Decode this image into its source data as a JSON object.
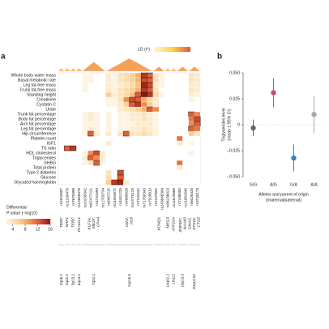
{
  "chart_data": [
    {
      "type": "heatmap",
      "panel": "a",
      "rows": [
        "Whole body water mass",
        "Basal metabolic rate",
        "Leg fat-free mass",
        "Trunk fat-free mass",
        "Standing height",
        "Creatinine",
        "Cystatin C",
        "Urate",
        "Trunk fat percentage",
        "Body fat percentage",
        "Arm fat percentage",
        "Leg fat percentage",
        "Hip circumference",
        "Platelet count",
        "IGF1",
        "TS ratio",
        "HDL cholesterol",
        "Triglycerides",
        "SHBG",
        "Total protein",
        "Type 2 diabetes",
        "Glucose",
        "Glycated haemoglobin"
      ],
      "groups": [
        {
          "genes": [
            "TERC"
          ],
          "band": "3q26.2",
          "snps": [
            "rs2920907"
          ]
        },
        {
          "genes": [
            "NAF1"
          ],
          "band": "4q32.2",
          "snps": [
            "rs11100479"
          ]
        },
        {
          "genes": [
            "TERC"
          ],
          "band": "5p13.2",
          "snps": [
            "rs7675998"
          ]
        },
        {
          "genes": [
            "PLAGL1"
          ],
          "band": "6q24.2",
          "snps": [
            "rs12659376"
          ]
        },
        {
          "genes": [
            "KLF14,",
            "MEST,",
            "CPA4"
          ],
          "band": "7q32.2",
          "snps": [
            "rs10239342",
            "rs62477221",
            "rs4731690",
            "rs12703734"
          ]
        },
        {
          "genes": [
            "IGF2,",
            "H19"
          ],
          "band": "11p15.5",
          "snps": [
            "rs6467215",
            "rs11054972",
            "rs4441225",
            "rs4980628",
            "rs10770125",
            "rs7102542",
            "rs71780343",
            "rs7928810"
          ]
        },
        {
          "genes": [
            "KCNQ1"
          ],
          "snps": [
            "rs2237892",
            "rs143848304"
          ]
        },
        {
          "genes": [
            "MEG3"
          ],
          "band": "14q32.2",
          "snps": [
            "rs56238023"
          ]
        },
        {
          "genes": [
            "ATP10A"
          ],
          "band": "15q12",
          "snps": [
            "rs11629866"
          ]
        },
        {
          "genes": [
            "ZNF597,",
            "NAA60"
          ],
          "band": "16p13.3",
          "snps": [
            "rs7188050",
            "rs11081640"
          ]
        },
        {
          "genes": [
            "GNAS,",
            "STX16,",
            "CTSZ"
          ],
          "band": "20q13.32",
          "snps": [
            "rs6026426",
            "rs3730173"
          ]
        }
      ],
      "values": [
        [
          null,
          null,
          null,
          null,
          2,
          2,
          null,
          null,
          3,
          2,
          4,
          5,
          6,
          8,
          14,
          12,
          4,
          2,
          null,
          null,
          null,
          null,
          4,
          3
        ],
        [
          null,
          null,
          null,
          null,
          2,
          2,
          null,
          null,
          3,
          2,
          4,
          5,
          6,
          8,
          13,
          12,
          4,
          2,
          null,
          null,
          null,
          null,
          4,
          3
        ],
        [
          null,
          null,
          null,
          null,
          2,
          null,
          null,
          null,
          3,
          2,
          3,
          4,
          5,
          7,
          15,
          13,
          3,
          2,
          null,
          null,
          null,
          null,
          3,
          3
        ],
        [
          null,
          null,
          null,
          null,
          2,
          null,
          null,
          null,
          3,
          2,
          4,
          5,
          6,
          8,
          14,
          12,
          4,
          null,
          null,
          null,
          null,
          null,
          4,
          3
        ],
        [
          null,
          null,
          null,
          null,
          null,
          null,
          null,
          null,
          6,
          3,
          4,
          5,
          7,
          12,
          16,
          14,
          5,
          2,
          null,
          null,
          null,
          null,
          3,
          2
        ],
        [
          null,
          null,
          null,
          null,
          null,
          null,
          null,
          null,
          2,
          2,
          4,
          10,
          13,
          12,
          8,
          5,
          3,
          null,
          null,
          null,
          null,
          null,
          2,
          null
        ],
        [
          null,
          null,
          null,
          null,
          null,
          null,
          null,
          null,
          2,
          2,
          3,
          6,
          12,
          14,
          10,
          6,
          3,
          null,
          null,
          null,
          null,
          null,
          null,
          null
        ],
        [
          null,
          null,
          null,
          null,
          null,
          null,
          null,
          null,
          null,
          null,
          3,
          4,
          5,
          6,
          8,
          12,
          10,
          null,
          null,
          null,
          null,
          null,
          null,
          null
        ],
        [
          null,
          null,
          null,
          null,
          2,
          3,
          2,
          null,
          2,
          null,
          2,
          2,
          3,
          3,
          4,
          3,
          2,
          null,
          null,
          null,
          null,
          null,
          12,
          10
        ],
        [
          null,
          null,
          null,
          null,
          2,
          3,
          2,
          null,
          2,
          null,
          2,
          2,
          3,
          3,
          4,
          3,
          2,
          null,
          null,
          null,
          null,
          null,
          11,
          13
        ],
        [
          null,
          null,
          null,
          null,
          2,
          2,
          2,
          null,
          2,
          null,
          2,
          2,
          2,
          3,
          3,
          3,
          2,
          null,
          null,
          null,
          null,
          null,
          10,
          12
        ],
        [
          null,
          null,
          null,
          null,
          2,
          3,
          2,
          null,
          2,
          null,
          2,
          2,
          3,
          3,
          4,
          3,
          2,
          null,
          null,
          null,
          null,
          null,
          12,
          11
        ],
        [
          null,
          null,
          null,
          null,
          2,
          12,
          3,
          null,
          3,
          null,
          4,
          12,
          4,
          4,
          5,
          4,
          2,
          null,
          null,
          null,
          null,
          null,
          6,
          4
        ],
        [
          null,
          null,
          null,
          null,
          null,
          null,
          null,
          null,
          null,
          null,
          null,
          null,
          null,
          null,
          null,
          null,
          null,
          null,
          null,
          null,
          11,
          null,
          null,
          null
        ],
        [
          null,
          null,
          null,
          null,
          null,
          null,
          null,
          null,
          3,
          null,
          null,
          null,
          null,
          null,
          null,
          null,
          null,
          null,
          null,
          null,
          3,
          null,
          2,
          null
        ],
        [
          null,
          12,
          14,
          null,
          null,
          null,
          null,
          null,
          null,
          null,
          null,
          null,
          null,
          null,
          null,
          null,
          null,
          null,
          null,
          null,
          null,
          null,
          null,
          null
        ],
        [
          null,
          null,
          null,
          null,
          2,
          10,
          13,
          3,
          null,
          null,
          null,
          null,
          null,
          null,
          null,
          null,
          null,
          null,
          null,
          null,
          null,
          null,
          2,
          null
        ],
        [
          null,
          null,
          null,
          null,
          3,
          12,
          10,
          3,
          null,
          null,
          null,
          null,
          null,
          null,
          null,
          null,
          null,
          null,
          null,
          null,
          null,
          null,
          null,
          null
        ],
        [
          null,
          null,
          null,
          null,
          2,
          4,
          12,
          2,
          null,
          null,
          null,
          null,
          null,
          null,
          null,
          null,
          null,
          null,
          null,
          null,
          11,
          null,
          null,
          null
        ],
        [
          null,
          null,
          null,
          null,
          null,
          null,
          null,
          null,
          null,
          null,
          null,
          null,
          null,
          null,
          null,
          null,
          null,
          null,
          null,
          null,
          3,
          null,
          null,
          null
        ],
        [
          null,
          null,
          null,
          null,
          null,
          null,
          null,
          null,
          4,
          null,
          13,
          null,
          null,
          null,
          null,
          null,
          null,
          null,
          null,
          null,
          null,
          null,
          null,
          null
        ],
        [
          null,
          null,
          null,
          null,
          null,
          null,
          null,
          null,
          5,
          null,
          12,
          null,
          null,
          null,
          null,
          null,
          null,
          null,
          null,
          null,
          null,
          null,
          null,
          null
        ],
        [
          null,
          null,
          null,
          null,
          null,
          null,
          null,
          null,
          6,
          14,
          15,
          3,
          null,
          null,
          null,
          null,
          null,
          null,
          null,
          null,
          null,
          null,
          null,
          null
        ]
      ],
      "colorscale": [
        "#fdf3e1",
        "#fbd7a0",
        "#f4a15a",
        "#e0532f",
        "#8e1414"
      ],
      "clim": [
        2,
        16
      ],
      "cticks": [
        4,
        8,
        12,
        16
      ],
      "colorbar_label": [
        "Differential",
        "P value (−log10)"
      ],
      "ld_label": "LD (r²)"
    },
    {
      "type": "errorbar",
      "panel": "b",
      "categories": [
        "G/G",
        "A/G",
        "G/A",
        "A/A"
      ],
      "values": [
        -0.003,
        0.031,
        -0.032,
        0.01
      ],
      "errors": [
        0.008,
        0.014,
        0.013,
        0.018
      ],
      "colors": [
        "#666666",
        "#c0506a",
        "#3a7fc1",
        "#a8a8a8"
      ],
      "ylabel": [
        "Triglycerides level",
        "(mean ± 95% CI)"
      ],
      "xlabel": [
        "Alleles and parent of origin",
        "(maternal/paternal)"
      ],
      "ylim": [
        -0.05,
        0.05
      ],
      "yticks": [
        {
          "value": 0.05,
          "label": "0.050"
        },
        {
          "value": 0.025,
          "label": "0.025"
        },
        0,
        {
          "value": -0.025,
          "label": "–0.025"
        },
        {
          "value": -0.05,
          "label": "–0.050"
        }
      ]
    }
  ]
}
